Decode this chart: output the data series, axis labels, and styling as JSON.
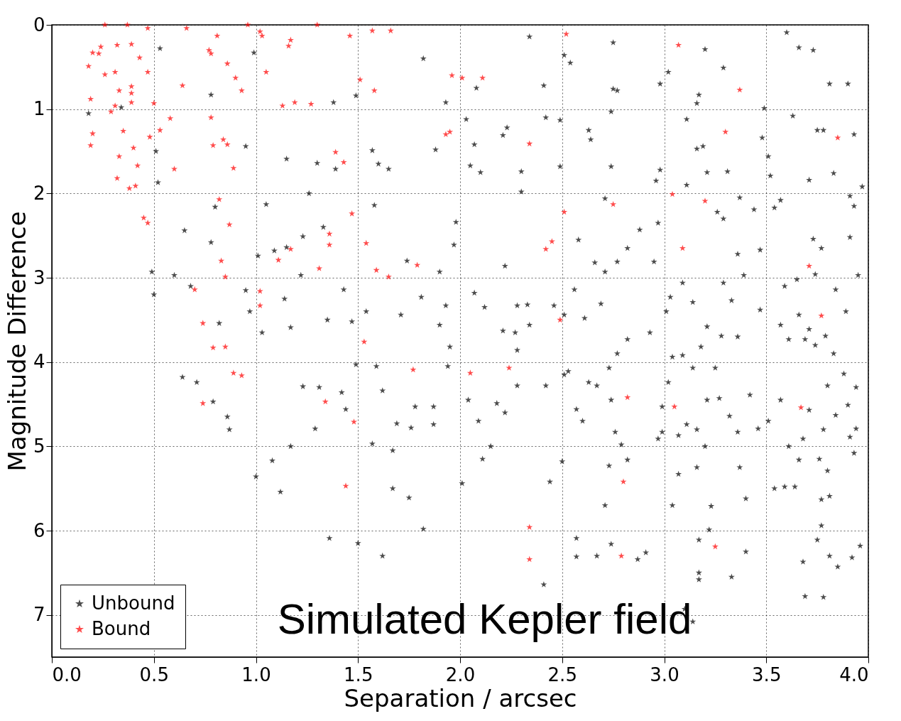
{
  "chart_data": {
    "type": "scatter",
    "xlabel": "Separation / arcsec",
    "ylabel": "Magnitude Difference",
    "annotations": [
      "Simulated Kepler field"
    ],
    "xlim": [
      0,
      4
    ],
    "xticks": [
      {
        "value": 0,
        "label": "0.0"
      },
      0.5,
      {
        "value": 1,
        "label": "1.0"
      },
      1.5,
      {
        "value": 2,
        "label": "2.0"
      },
      2.5,
      {
        "value": 3,
        "label": "3.0"
      },
      3.5,
      {
        "value": 4,
        "label": "4.0"
      }
    ],
    "ylim": [
      7.5,
      0
    ],
    "yticks": [
      0,
      1,
      2,
      3,
      4,
      5,
      6,
      7
    ],
    "grid": true,
    "legend": "bottom left",
    "marker": "star",
    "series": [
      {
        "name": "Unbound",
        "color": "#000000",
        "x": [
          0.53,
          0.34,
          0.18,
          0.78,
          0.99,
          1.82,
          1.49,
          1.38,
          1.93,
          2.08,
          2.03,
          0.51,
          0.52,
          0.95,
          1.05,
          1.15,
          1.26,
          1.3,
          1.39,
          1.57,
          1.6,
          1.65,
          1.58,
          1.88,
          2.05,
          2.07,
          2.1,
          2.21,
          2.23,
          2.3,
          2.3,
          2.41,
          2.42,
          2.49,
          2.34,
          2.51,
          2.54,
          2.49,
          2.63,
          2.64,
          2.71,
          2.74,
          2.74,
          2.75,
          2.77,
          2.75,
          2.98,
          3.02,
          2.96,
          2.98,
          2.97,
          3.11,
          3.11,
          3.16,
          3.17,
          3.16,
          3.2,
          3.21,
          3.19,
          3.26,
          3.29,
          3.31,
          3.37,
          3.39,
          3.44,
          3.47,
          3.49,
          3.51,
          3.48,
          3.52,
          3.57,
          3.54,
          3.6,
          3.63,
          3.66,
          3.71,
          3.73,
          3.75,
          3.81,
          3.78,
          3.83,
          3.9,
          3.93,
          3.97,
          3.91,
          3.93,
          3.91,
          3.95,
          3.89,
          3.84,
          3.74,
          3.77,
          3.73,
          3.65,
          3.59,
          3.57,
          3.61,
          3.66,
          3.71,
          3.69,
          3.74,
          3.79,
          3.83,
          3.88,
          3.8,
          3.94,
          3.9,
          3.84,
          3.78,
          3.71,
          3.68,
          3.57,
          3.51,
          3.46,
          3.42,
          3.36,
          3.32,
          3.27,
          3.21,
          3.16,
          3.11,
          3.07,
          2.99,
          2.99,
          3.02,
          3.04,
          3.09,
          3.14,
          3.18,
          3.21,
          3.25,
          3.28,
          3.36,
          3.47,
          3.33,
          3.29,
          3.36,
          3.29,
          3.01,
          3.03,
          3.09,
          3.14,
          2.95,
          2.88,
          2.82,
          2.77,
          2.71,
          2.66,
          2.58,
          2.69,
          2.61,
          2.51,
          2.56,
          2.82,
          2.93,
          2.77,
          2.73,
          2.63,
          2.51,
          2.42,
          2.28,
          2.27,
          2.28,
          2.21,
          2.34,
          2.22,
          2.18,
          2.22,
          2.15,
          2.11,
          2.09,
          2.04,
          2.01,
          1.95,
          1.94,
          1.87,
          1.87,
          1.78,
          1.76,
          1.69,
          1.62,
          1.59,
          1.49,
          1.42,
          1.44,
          1.29,
          1.23,
          1.17,
          1.31,
          1.08,
          1.0,
          1.12,
          1.36,
          1.5,
          1.62,
          1.82,
          1.75,
          1.67,
          1.57,
          1.67,
          1.47,
          1.35,
          1.54,
          1.43,
          1.33,
          1.23,
          1.22,
          1.14,
          1.17,
          1.03,
          0.97,
          0.95,
          1.01,
          1.09,
          1.15,
          0.78,
          0.65,
          0.6,
          0.49,
          0.5,
          0.68,
          0.64,
          0.71,
          0.79,
          0.86,
          0.87,
          0.82,
          0.8,
          1.9,
          1.93,
          1.9,
          1.81,
          1.74,
          1.71,
          1.98,
          1.97,
          2.07,
          2.12,
          2.28,
          2.33,
          2.46,
          2.53,
          2.57,
          2.6,
          2.67,
          2.74,
          2.76,
          2.79,
          2.73,
          2.71,
          2.67,
          2.57,
          2.57,
          2.5,
          2.44,
          2.41,
          2.74,
          2.87,
          2.91,
          2.82,
          2.97,
          3.04,
          3.07,
          3.16,
          3.2,
          3.23,
          3.22,
          3.17,
          3.17,
          3.17,
          3.1,
          3.14,
          3.33,
          3.4,
          3.37,
          3.4,
          3.54,
          3.59,
          3.64,
          3.66,
          3.61,
          3.76,
          3.8,
          3.77,
          3.81,
          3.77,
          3.75,
          3.81,
          3.85,
          3.92,
          3.96,
          3.93,
          3.94,
          3.91,
          3.69,
          3.78,
          3.68
        ],
        "values": [
          0.28,
          0.98,
          1.05,
          0.83,
          0.33,
          0.4,
          0.84,
          0.92,
          0.92,
          0.75,
          1.12,
          1.5,
          1.87,
          1.44,
          2.13,
          1.59,
          2.0,
          1.64,
          1.71,
          1.49,
          1.65,
          1.71,
          2.14,
          1.48,
          1.67,
          1.42,
          1.75,
          1.31,
          1.22,
          1.74,
          1.98,
          0.72,
          1.1,
          1.13,
          0.14,
          0.36,
          0.45,
          1.68,
          1.25,
          1.36,
          2.06,
          1.68,
          1.03,
          0.76,
          0.78,
          0.21,
          0.7,
          0.56,
          1.85,
          1.72,
          2.35,
          1.9,
          1.12,
          1.47,
          0.83,
          0.93,
          0.29,
          1.75,
          1.44,
          2.22,
          0.51,
          1.74,
          2.05,
          2.97,
          2.19,
          2.67,
          0.99,
          1.56,
          1.34,
          1.79,
          2.08,
          2.17,
          0.09,
          1.08,
          0.27,
          1.84,
          0.3,
          1.25,
          0.7,
          1.25,
          1.76,
          0.7,
          1.3,
          1.92,
          2.03,
          2.15,
          2.52,
          2.97,
          3.4,
          3.14,
          2.96,
          2.65,
          2.54,
          3.02,
          3.1,
          3.56,
          3.73,
          3.44,
          3.61,
          3.73,
          3.8,
          3.69,
          3.9,
          4.14,
          4.28,
          4.3,
          4.51,
          4.63,
          4.8,
          4.57,
          4.91,
          4.45,
          4.7,
          4.79,
          4.39,
          4.83,
          4.64,
          4.43,
          4.45,
          4.8,
          4.74,
          4.87,
          4.53,
          4.83,
          4.24,
          3.94,
          3.92,
          4.07,
          3.82,
          3.58,
          4.07,
          3.69,
          3.7,
          3.38,
          3.27,
          3.06,
          2.72,
          2.3,
          3.4,
          3.23,
          3.06,
          3.29,
          2.81,
          2.43,
          2.65,
          2.81,
          2.93,
          2.82,
          2.55,
          3.31,
          3.48,
          3.44,
          3.14,
          3.73,
          3.65,
          3.9,
          4.07,
          4.24,
          4.15,
          4.28,
          4.28,
          3.65,
          3.86,
          3.63,
          3.56,
          2.86,
          4.49,
          4.6,
          5.0,
          5.15,
          4.7,
          4.45,
          5.44,
          3.82,
          4.05,
          4.53,
          4.74,
          4.53,
          4.78,
          4.73,
          4.34,
          4.05,
          4.03,
          4.36,
          4.56,
          4.79,
          4.29,
          5.0,
          4.3,
          5.17,
          5.36,
          5.54,
          6.09,
          6.15,
          6.3,
          5.98,
          5.61,
          5.5,
          4.97,
          5.05,
          3.52,
          3.5,
          3.4,
          3.14,
          2.4,
          2.51,
          2.97,
          3.25,
          3.59,
          3.65,
          3.4,
          3.15,
          2.74,
          2.68,
          2.64,
          2.58,
          2.44,
          2.97,
          2.93,
          3.2,
          3.1,
          4.18,
          4.24,
          4.47,
          4.65,
          4.8,
          3.54,
          2.16,
          2.93,
          3.33,
          3.56,
          3.23,
          2.8,
          3.44,
          2.34,
          2.61,
          3.18,
          3.35,
          3.33,
          3.32,
          3.33,
          4.11,
          4.56,
          4.7,
          4.28,
          4.45,
          4.83,
          4.98,
          5.23,
          5.7,
          6.3,
          6.31,
          6.09,
          5.18,
          5.42,
          6.64,
          6.16,
          6.34,
          6.26,
          5.16,
          4.91,
          5.7,
          5.33,
          5.25,
          5.0,
          5.71,
          5.99,
          6.11,
          6.5,
          6.58,
          6.93,
          7.08,
          6.55,
          6.25,
          5.25,
          5.62,
          5.5,
          5.48,
          5.48,
          5.16,
          5.0,
          5.15,
          5.29,
          5.63,
          5.59,
          5.94,
          6.11,
          6.3,
          6.43,
          6.32,
          6.18,
          5.08,
          4.79,
          4.89,
          6.78,
          6.79,
          6.37
        ]
      },
      {
        "name": "Bound",
        "color": "#ff0000",
        "x": [
          0.26,
          0.37,
          0.47,
          0.96,
          1.3,
          1.57,
          1.66,
          1.02,
          1.03,
          1.46,
          0.66,
          0.81,
          1.17,
          1.16,
          0.77,
          1.05,
          0.23,
          0.2,
          0.18,
          0.24,
          0.32,
          0.39,
          0.43,
          0.47,
          0.19,
          0.26,
          0.31,
          0.33,
          0.39,
          0.29,
          0.2,
          0.19,
          0.31,
          0.39,
          0.39,
          0.5,
          0.64,
          0.58,
          0.53,
          0.6,
          0.4,
          0.35,
          0.33,
          0.32,
          0.38,
          0.42,
          0.41,
          0.45,
          0.47,
          0.48,
          0.86,
          0.9,
          0.93,
          0.78,
          0.78,
          0.79,
          0.84,
          0.86,
          0.89,
          0.82,
          0.83,
          0.87,
          0.85,
          0.7,
          0.74,
          0.79,
          0.85,
          0.89,
          0.93,
          0.74,
          1.02,
          1.02,
          1.13,
          1.19,
          1.27,
          1.11,
          1.17,
          1.31,
          1.36,
          1.36,
          1.39,
          1.43,
          1.47,
          1.51,
          1.58,
          1.53,
          1.54,
          1.59,
          1.65,
          1.34,
          1.48,
          1.44,
          1.77,
          1.79,
          1.93,
          1.95,
          1.96,
          2.01,
          2.11,
          2.05,
          2.24,
          2.34,
          2.45,
          2.42,
          2.49,
          2.52,
          2.51,
          2.34,
          2.34,
          2.75,
          2.79,
          2.82,
          2.8,
          3.07,
          3.04,
          3.05,
          3.09,
          3.2,
          3.3,
          3.37,
          3.71,
          3.77,
          3.67,
          3.85,
          3.25
        ],
        "values": [
          0.0,
          0.0,
          0.04,
          0.0,
          0.0,
          0.07,
          0.07,
          0.08,
          0.13,
          0.13,
          0.04,
          0.13,
          0.18,
          0.25,
          0.3,
          0.56,
          0.34,
          0.33,
          0.49,
          0.26,
          0.24,
          0.23,
          0.39,
          0.56,
          0.88,
          0.59,
          0.56,
          0.78,
          0.73,
          1.03,
          1.29,
          1.43,
          0.96,
          0.81,
          0.92,
          0.93,
          0.72,
          1.11,
          1.25,
          1.71,
          1.46,
          1.26,
          1.56,
          1.82,
          1.94,
          1.67,
          1.91,
          2.29,
          2.35,
          1.33,
          0.46,
          0.63,
          0.78,
          0.34,
          1.1,
          1.43,
          1.36,
          1.42,
          1.7,
          2.07,
          2.8,
          2.37,
          2.99,
          3.14,
          3.54,
          3.83,
          3.82,
          4.13,
          4.16,
          4.49,
          3.16,
          3.33,
          0.96,
          0.92,
          0.94,
          2.79,
          2.66,
          2.89,
          2.48,
          2.61,
          1.51,
          1.63,
          2.24,
          0.65,
          0.78,
          3.76,
          2.59,
          2.91,
          2.99,
          4.47,
          4.71,
          5.47,
          4.09,
          2.85,
          1.3,
          1.27,
          0.6,
          0.63,
          0.63,
          4.13,
          4.07,
          1.41,
          2.57,
          2.66,
          3.5,
          0.11,
          2.22,
          5.96,
          6.34,
          2.13,
          6.3,
          4.42,
          5.42,
          0.24,
          2.01,
          4.53,
          2.65,
          2.09,
          1.27,
          0.77,
          2.86,
          3.45,
          4.54,
          1.34,
          6.19
        ]
      }
    ]
  }
}
